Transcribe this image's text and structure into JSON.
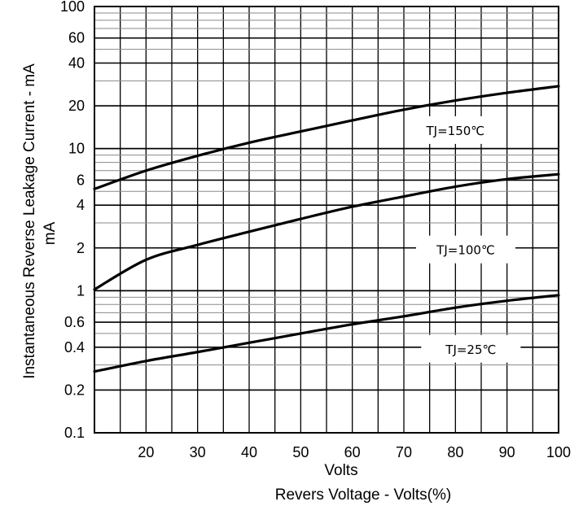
{
  "chart_data": {
    "type": "line",
    "title": "",
    "xlabel_units": "Volts",
    "xlabel": "Revers  Voltage - Volts(%)",
    "ylabel": "Instantaneous Reverse Leakage Current - mA",
    "ylabel_units": "mA",
    "x_scale": "linear",
    "y_scale": "log",
    "xlim": [
      10,
      100
    ],
    "ylim": [
      0.1,
      100
    ],
    "x_ticks": [
      20,
      30,
      40,
      50,
      60,
      70,
      80,
      90,
      100
    ],
    "x_tick_labels": [
      "20",
      "30",
      "40",
      "50",
      "60",
      "70",
      "80",
      "90",
      "100"
    ],
    "y_ticks": [
      0.1,
      0.2,
      0.4,
      0.6,
      1,
      2,
      4,
      6,
      10,
      20,
      40,
      60,
      100
    ],
    "y_tick_labels": [
      "0.1",
      "0.2",
      "0.4",
      "0.6",
      "1",
      "2",
      "4",
      "6",
      "10",
      "20",
      "40",
      "60",
      "100"
    ],
    "grid": true,
    "series": [
      {
        "name": "TJ=150℃",
        "x": [
          10,
          20,
          30,
          40,
          50,
          60,
          70,
          80,
          90,
          100
        ],
        "y": [
          5.2,
          7.0,
          8.9,
          11.0,
          13.2,
          15.8,
          18.8,
          21.8,
          24.7,
          27.5
        ]
      },
      {
        "name": "TJ=100℃",
        "x": [
          10,
          20,
          30,
          40,
          50,
          60,
          70,
          80,
          90,
          100
        ],
        "y": [
          1.02,
          1.65,
          2.1,
          2.6,
          3.2,
          3.9,
          4.6,
          5.4,
          6.1,
          6.6
        ]
      },
      {
        "name": "TJ=25℃",
        "x": [
          10,
          20,
          30,
          40,
          50,
          60,
          70,
          80,
          90,
          100
        ],
        "y": [
          0.27,
          0.32,
          0.37,
          0.43,
          0.5,
          0.58,
          0.66,
          0.76,
          0.85,
          0.93
        ]
      }
    ],
    "annotations": [
      {
        "series": "TJ=150℃",
        "text": "TJ=150℃",
        "at_x": 80,
        "at_y": 13.5
      },
      {
        "series": "TJ=100℃",
        "text": "TJ=100℃",
        "at_x": 82,
        "at_y": 1.95
      },
      {
        "series": "TJ=25℃",
        "text": "TJ=25℃",
        "at_x": 83,
        "at_y": 0.39
      }
    ]
  }
}
